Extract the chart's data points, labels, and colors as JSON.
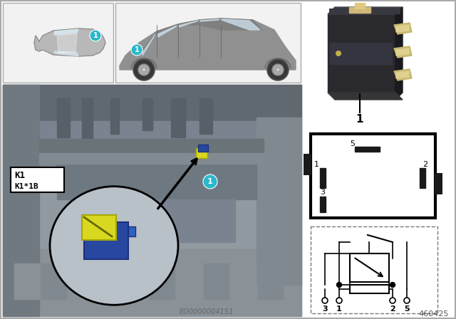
{
  "bg_color": "#ffffff",
  "teal_color": "#29b8cc",
  "label_k1": "K1",
  "label_k1b": "K1*1B",
  "eo_code": "EO0000004151",
  "part_number": "460425",
  "pin_labels_schematic": [
    "3",
    "1",
    "2",
    "5"
  ]
}
